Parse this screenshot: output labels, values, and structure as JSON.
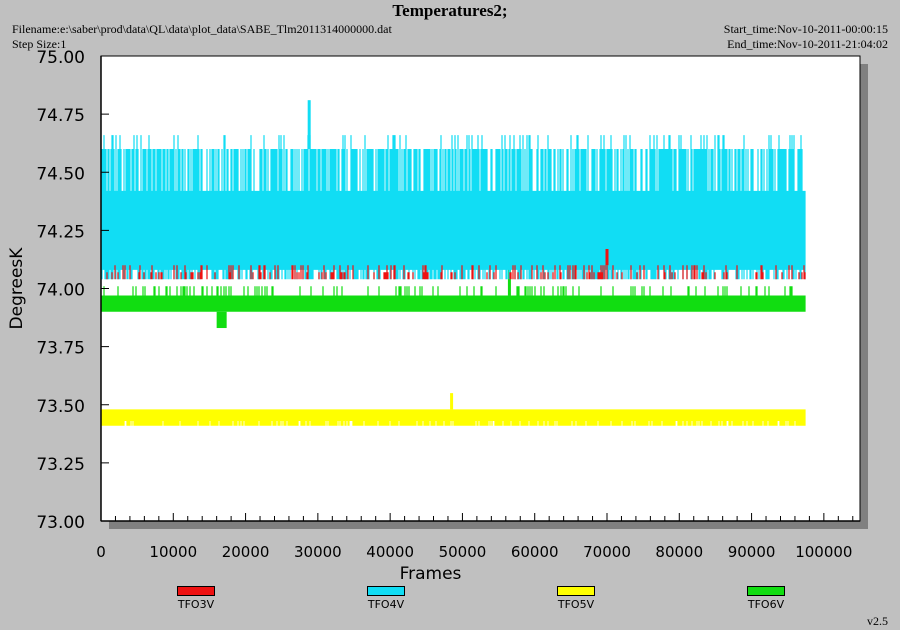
{
  "header": {
    "title": "Temperatures2;",
    "filename": "Filename:e:\\saber\\prod\\data\\QL\\data\\plot_data\\SABE_Tlm2011314000000.dat",
    "step_size": "Step Size:1",
    "start_time": "Start_time:Nov-10-2011-00:00:15",
    "end_time": "End_time:Nov-10-2011-21:04:02"
  },
  "footer": {
    "version": "v2.5"
  },
  "colors": {
    "background": "#c0c0c0",
    "plot_bg": "#ffffff",
    "shadow": "#808080"
  },
  "chart_data": {
    "type": "line",
    "title": "Temperatures2;",
    "xlabel": "Frames",
    "ylabel": "DegreesK",
    "xlim": [
      0,
      105000
    ],
    "ylim": [
      73.0,
      75.0
    ],
    "x_ticks": [
      0,
      10000,
      20000,
      30000,
      40000,
      50000,
      60000,
      70000,
      80000,
      90000,
      100000
    ],
    "x_tick_labels": [
      "0",
      "10000",
      "20000",
      "30000",
      "40000",
      "50000",
      "60000",
      "70000",
      "80000",
      "90000",
      "100000"
    ],
    "y_ticks": [
      73.0,
      73.25,
      73.5,
      73.75,
      74.0,
      74.25,
      74.5,
      74.75,
      75.0
    ],
    "y_tick_labels": [
      "73.00",
      "73.25",
      "73.50",
      "73.75",
      "74.00",
      "74.25",
      "74.50",
      "74.75",
      "75.00"
    ],
    "grid": false,
    "legend_position": "bottom",
    "series": [
      {
        "name": "TFO3V",
        "color": "#ee1111",
        "x_range": [
          0,
          97500
        ],
        "min": 74.04,
        "max": 74.17,
        "typical": [
          74.04,
          74.1
        ]
      },
      {
        "name": "TFO4V",
        "color": "#11ddf4",
        "x_range": [
          0,
          97500
        ],
        "min": 74.03,
        "max": 74.81,
        "typical": [
          74.04,
          74.6
        ]
      },
      {
        "name": "TFO5V",
        "color": "#ffff00",
        "x_range": [
          0,
          97500
        ],
        "min": 73.41,
        "max": 73.55,
        "typical": [
          73.41,
          73.48
        ]
      },
      {
        "name": "TFO6V",
        "color": "#11dd11",
        "x_range": [
          0,
          97500
        ],
        "min": 73.83,
        "max": 74.17,
        "typical": [
          73.9,
          73.97
        ]
      }
    ]
  }
}
